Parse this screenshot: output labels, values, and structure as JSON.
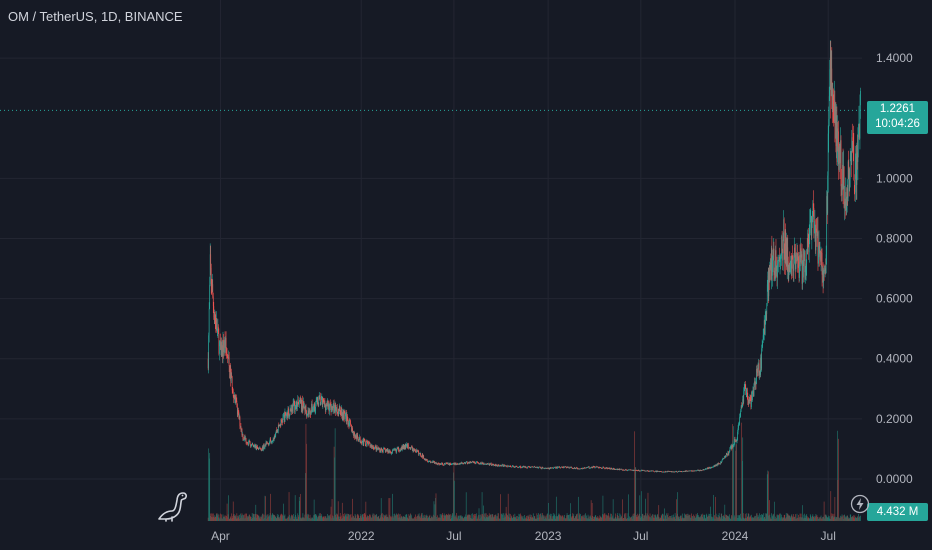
{
  "title": "OM / TetherUS, 1D, BINANCE",
  "price_label": "1.2261",
  "countdown_label": "10:04:26",
  "volume_label": "4.432 M",
  "icons": [
    "tradingview-dino-icon",
    "lightning-icon"
  ],
  "colors": {
    "background": "#161a25",
    "grid": "#232632",
    "up": "#26a69a",
    "down": "#ef5350",
    "text": "#d1d4dc",
    "axis_text": "#b2b5be",
    "price_line": "#26a69a"
  },
  "chart_data": {
    "type": "candlestick",
    "title": "OM / TetherUS, 1D, BINANCE",
    "y_ticks": [
      "1.4000",
      "1.0000",
      "0.8000",
      "0.6000",
      "0.4000",
      "0.2000",
      "0.0000"
    ],
    "y_range": [
      -0.03,
      1.5
    ],
    "x_ticks": [
      "Apr",
      "2022",
      "Jul",
      "2023",
      "Jul",
      "2024",
      "Jul"
    ],
    "x_tick_dates": [
      "2021-04-01",
      "2022-01-01",
      "2022-07-01",
      "2023-01-01",
      "2023-07-01",
      "2024-01-01",
      "2024-07-01"
    ],
    "x_range": [
      "2021-02-24",
      "2024-09-05"
    ],
    "grid": true,
    "last_price": 1.2261,
    "last_volume": "4.432 M",
    "series": [
      {
        "name": "OM",
        "dates": [
          "2021-03-08",
          "2021-03-12",
          "2021-03-20",
          "2021-04-01",
          "2021-04-10",
          "2021-04-20",
          "2021-05-01",
          "2021-05-15",
          "2021-06-01",
          "2021-06-20",
          "2021-07-10",
          "2021-08-01",
          "2021-08-20",
          "2021-09-05",
          "2021-09-20",
          "2021-10-10",
          "2021-11-01",
          "2021-11-20",
          "2021-12-05",
          "2021-12-20",
          "2022-01-10",
          "2022-02-01",
          "2022-03-01",
          "2022-04-01",
          "2022-04-20",
          "2022-05-12",
          "2022-06-01",
          "2022-07-01",
          "2022-08-01",
          "2022-09-01",
          "2022-10-01",
          "2022-11-01",
          "2022-12-01",
          "2023-01-01",
          "2023-02-01",
          "2023-03-01",
          "2023-04-01",
          "2023-05-01",
          "2023-06-01",
          "2023-07-01",
          "2023-08-01",
          "2023-09-01",
          "2023-10-01",
          "2023-11-01",
          "2023-12-01",
          "2023-12-20",
          "2024-01-05",
          "2024-01-20",
          "2024-02-01",
          "2024-02-10",
          "2024-02-20",
          "2024-03-01",
          "2024-03-05",
          "2024-03-15",
          "2024-03-25",
          "2024-04-05",
          "2024-04-15",
          "2024-05-01",
          "2024-05-15",
          "2024-06-01",
          "2024-06-15",
          "2024-06-25",
          "2024-07-05",
          "2024-07-15",
          "2024-07-25",
          "2024-08-05",
          "2024-08-15",
          "2024-08-25",
          "2024-09-02"
        ],
        "close": [
          0.4,
          0.7,
          0.55,
          0.42,
          0.45,
          0.35,
          0.25,
          0.14,
          0.11,
          0.1,
          0.13,
          0.2,
          0.24,
          0.25,
          0.22,
          0.26,
          0.24,
          0.23,
          0.2,
          0.14,
          0.12,
          0.1,
          0.09,
          0.11,
          0.09,
          0.06,
          0.05,
          0.05,
          0.055,
          0.05,
          0.045,
          0.04,
          0.04,
          0.035,
          0.04,
          0.035,
          0.04,
          0.035,
          0.03,
          0.028,
          0.025,
          0.024,
          0.026,
          0.03,
          0.05,
          0.09,
          0.14,
          0.3,
          0.25,
          0.33,
          0.38,
          0.55,
          0.65,
          0.75,
          0.68,
          0.8,
          0.7,
          0.72,
          0.7,
          0.85,
          0.75,
          0.65,
          1.4,
          1.15,
          1.05,
          0.9,
          1.1,
          1.0,
          1.2261
        ]
      }
    ],
    "volume": {
      "label": "4.432 M",
      "spike_dates": [
        "2021-03-10",
        "2021-09-15",
        "2021-11-10",
        "2022-07-01",
        "2023-06-20",
        "2023-12-28",
        "2024-01-03",
        "2024-01-15",
        "2024-03-05",
        "2024-07-20"
      ]
    }
  }
}
